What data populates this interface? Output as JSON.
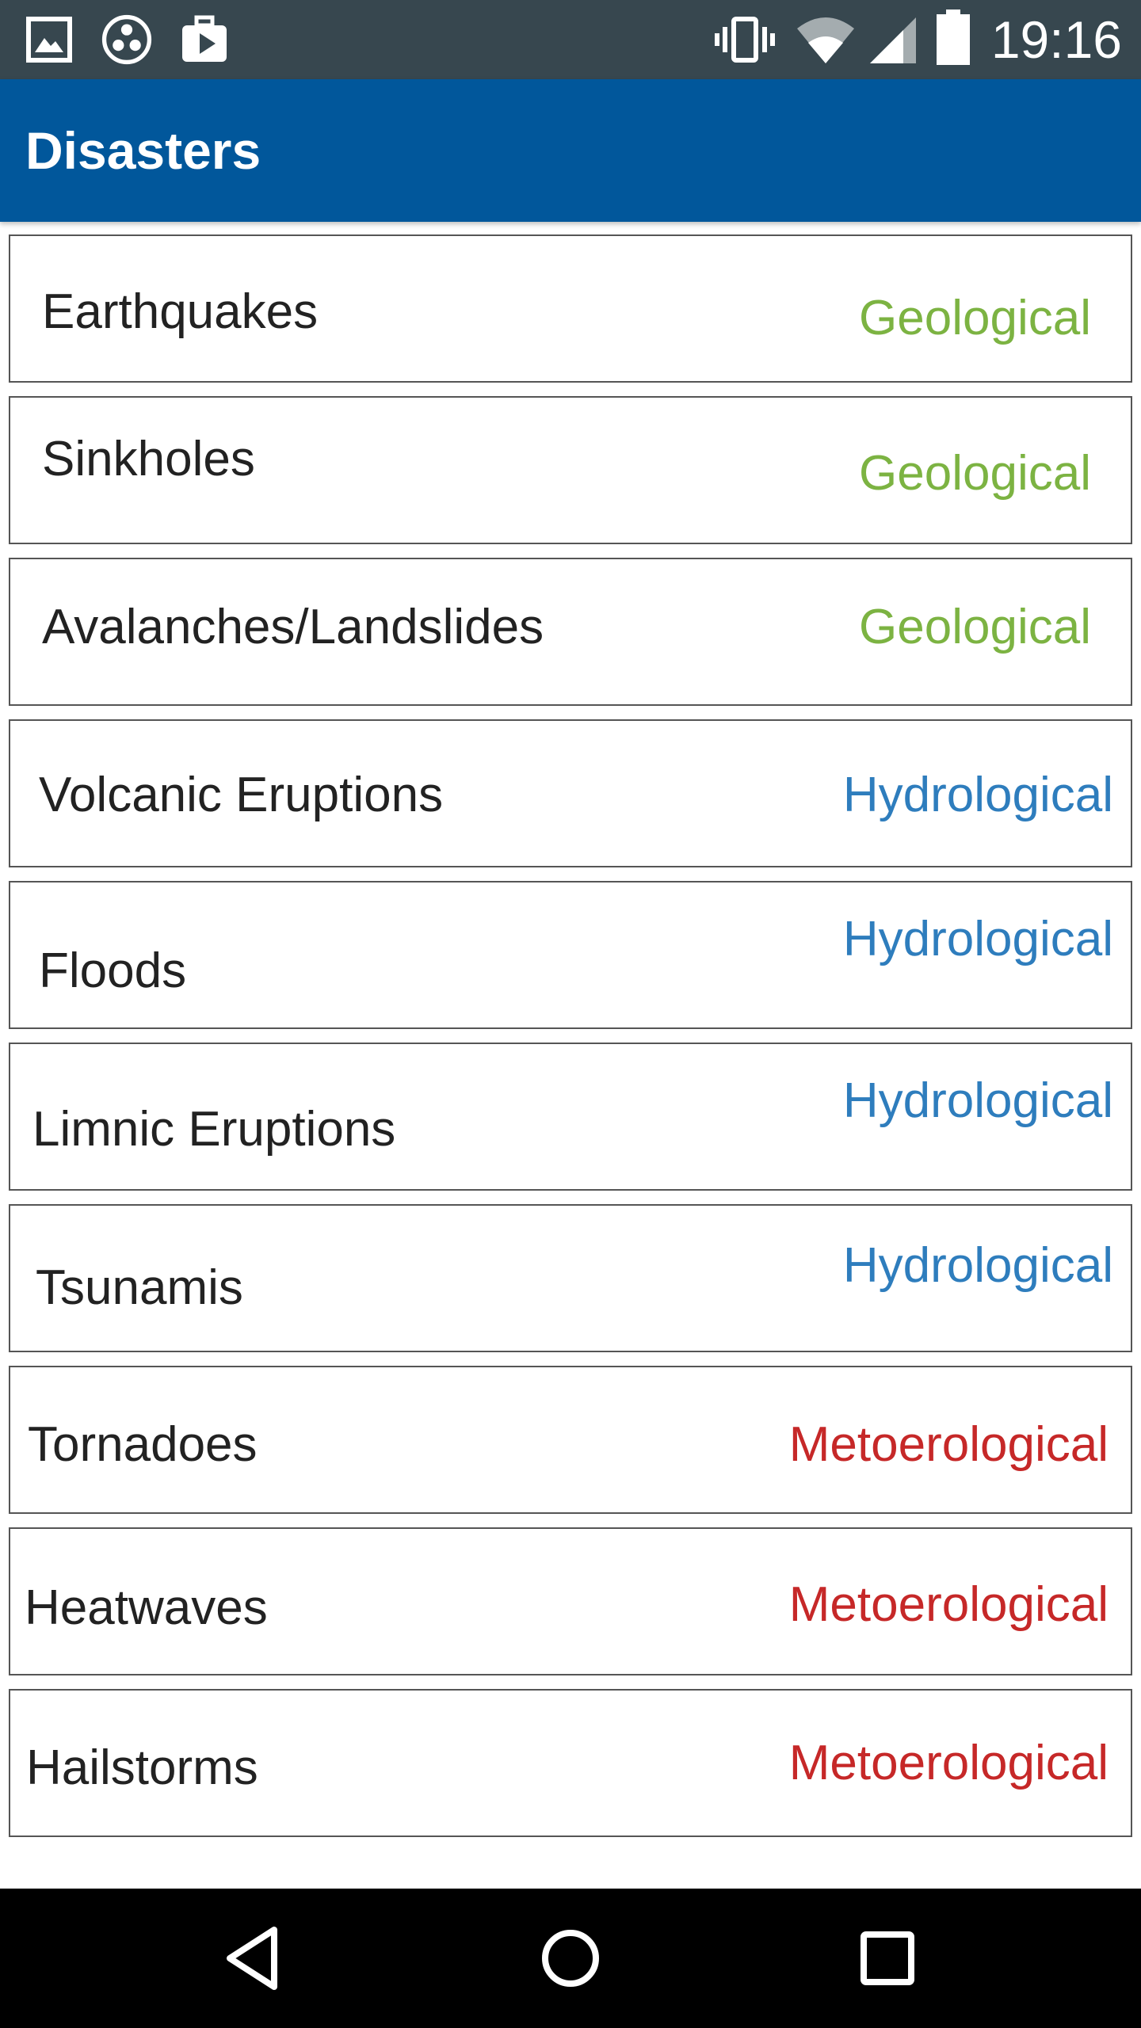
{
  "status_bar": {
    "time": "19:16",
    "left_icons": [
      "gallery-icon",
      "app-circles-icon",
      "briefcase-play-icon"
    ],
    "right_icons": [
      "vibrate-icon",
      "wifi-icon",
      "cell-signal-icon",
      "battery-icon"
    ]
  },
  "app_bar": {
    "title": "Disasters",
    "color": "#01579b"
  },
  "colors": {
    "geological": "#7cb342",
    "hydrological": "#2e7dbd",
    "meteorological": "#c62828"
  },
  "items": [
    {
      "name": "Earthquakes",
      "category": "Geological",
      "type": "geological"
    },
    {
      "name": "Sinkholes",
      "category": "Geological",
      "type": "geological"
    },
    {
      "name": "Avalanches/Landslides",
      "category": "Geological",
      "type": "geological"
    },
    {
      "name": "Volcanic Eruptions",
      "category": "Hydrological",
      "type": "hydrological"
    },
    {
      "name": "Floods",
      "category": "Hydrological",
      "type": "hydrological"
    },
    {
      "name": "Limnic Eruptions",
      "category": "Hydrological",
      "type": "hydrological"
    },
    {
      "name": "Tsunamis",
      "category": "Hydrological",
      "type": "hydrological"
    },
    {
      "name": "Tornadoes",
      "category": "Metoerological",
      "type": "meteorological"
    },
    {
      "name": "Heatwaves",
      "category": "Metoerological",
      "type": "meteorological"
    },
    {
      "name": "Hailstorms",
      "category": "Metoerological",
      "type": "meteorological"
    }
  ],
  "nav_bar": {
    "buttons": [
      "back-icon",
      "home-icon",
      "recents-icon"
    ]
  }
}
